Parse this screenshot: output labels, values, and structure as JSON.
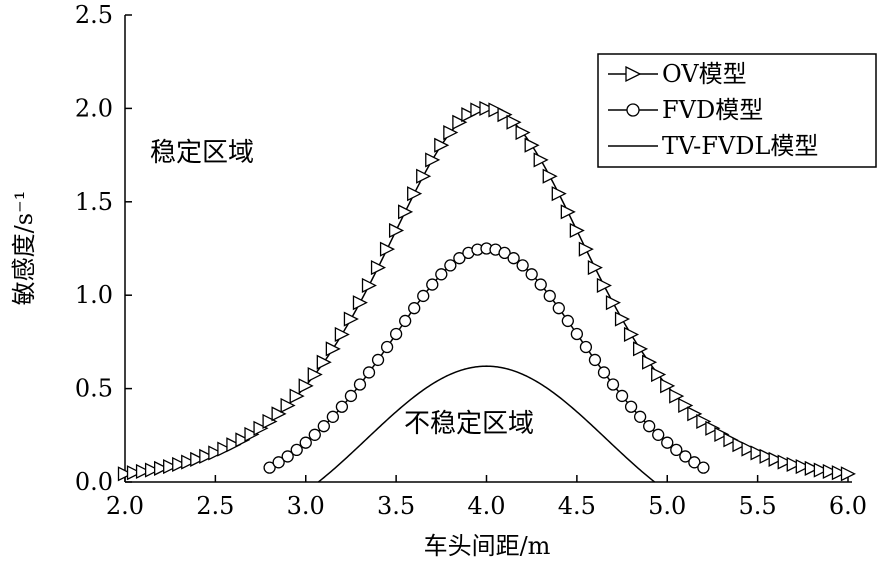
{
  "chart_data": {
    "type": "line",
    "xlabel": "车头间距/m",
    "ylabel": "敏感度/s⁻¹",
    "xlim": [
      2.0,
      6.0
    ],
    "ylim": [
      0.0,
      2.5
    ],
    "xticks": [
      "2.0",
      "2.5",
      "3.0",
      "3.5",
      "4.0",
      "4.5",
      "5.0",
      "5.5",
      "6.0"
    ],
    "yticks": [
      "0.0",
      "0.5",
      "1.0",
      "1.5",
      "2.0",
      "2.5"
    ],
    "annotations": [
      "稳定区域",
      "不稳定区域"
    ],
    "legend": {
      "placement": "top-right"
    },
    "series": [
      {
        "name": "OV模型",
        "marker": "triangle-right",
        "x_range": [
          2.0,
          6.0
        ],
        "x_step": 0.05,
        "peak_x": 4.0,
        "peak_y": 2.0,
        "sample": {
          "2.0": 0.14,
          "3.0": 0.84,
          "3.5": 1.52,
          "4.0": 2.0,
          "4.5": 1.52,
          "5.0": 0.84,
          "6.0": 0.14
        }
      },
      {
        "name": "FVD模型",
        "marker": "circle",
        "x_range": [
          2.8,
          5.2
        ],
        "x_step": 0.05,
        "peak_x": 4.0,
        "peak_y": 1.4,
        "sample": {
          "2.8": 0.0,
          "3.0": 0.24,
          "3.5": 0.92,
          "4.0": 1.4,
          "4.5": 0.92,
          "5.0": 0.24,
          "5.2": 0.0
        }
      },
      {
        "name": "TV-FVDL模型",
        "marker": "none",
        "x_range": [
          3.07,
          4.93
        ],
        "peak_x": 4.0,
        "peak_y": 0.62,
        "sample": {
          "3.07": 0.0,
          "3.5": 0.29,
          "4.0": 0.62,
          "4.5": 0.29,
          "4.93": 0.0
        }
      }
    ],
    "colors": {
      "line": "#000000",
      "background": "#ffffff"
    }
  }
}
